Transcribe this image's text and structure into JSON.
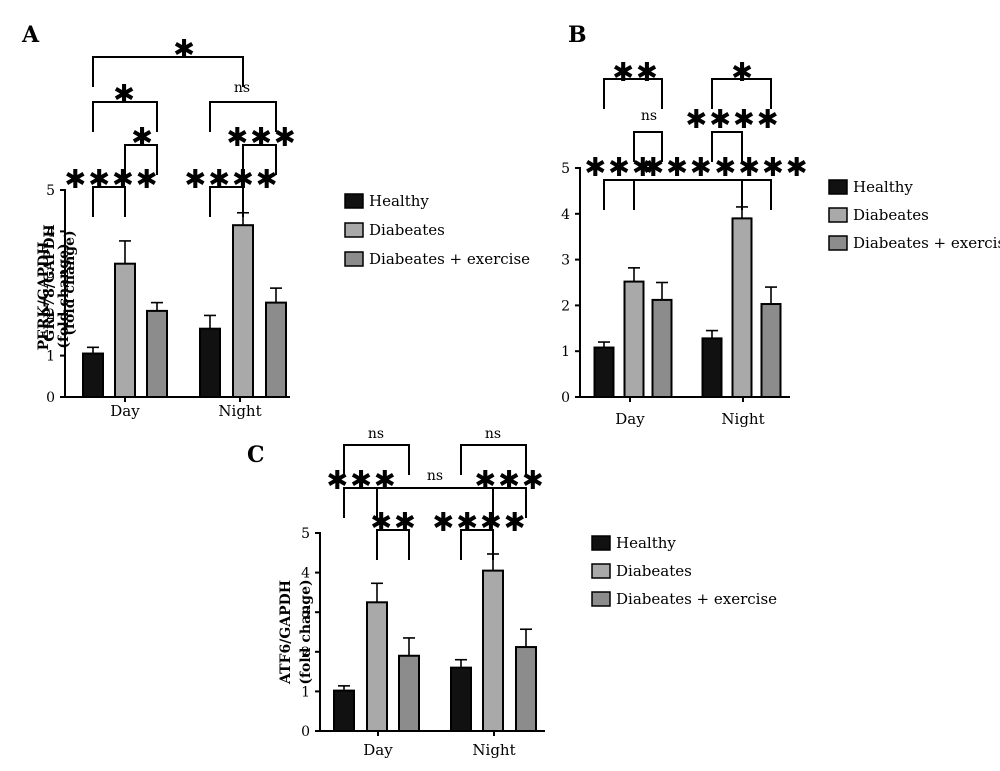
{
  "colors": {
    "Healthy": "#111111",
    "Diabeates": "#a9a9a9",
    "Diabeates + exercise": "#8c8c8c"
  },
  "legend_labels": [
    "Healthy",
    "Diabeates",
    "Diabeates + exercise"
  ],
  "chart_data": [
    {
      "type": "bar",
      "panel_label": "A",
      "ylabel_line1": "PERK/GAPDH",
      "ylabel_line2": "(fold change)",
      "categories": [
        "Day",
        "Night"
      ],
      "ylim": [
        0,
        5
      ],
      "yticks": [
        0,
        1,
        2,
        3,
        4,
        5
      ],
      "series": [
        {
          "name": "Healthy",
          "values": [
            1.05,
            1.65
          ],
          "errors": [
            0.15,
            0.32
          ]
        },
        {
          "name": "Diabeates",
          "values": [
            3.22,
            4.15
          ],
          "errors": [
            0.55,
            0.3
          ]
        },
        {
          "name": "Diabeates + exercise",
          "values": [
            2.08,
            2.28
          ],
          "errors": [
            0.2,
            0.35
          ]
        }
      ],
      "significance": [
        {
          "label": "*",
          "from": "Day:Healthy",
          "to": "Night:Healthy"
        },
        {
          "label": "*",
          "from": "Day:Healthy",
          "to": "Day:Diabeates + exercise"
        },
        {
          "label": "ns",
          "from": "Night:Healthy",
          "to": "Night:Diabeates + exercise"
        },
        {
          "label": "*",
          "from": "Day:Diabeates",
          "to": "Day:Diabeates + exercise"
        },
        {
          "label": "***",
          "from": "Night:Diabeates",
          "to": "Night:Diabeates + exercise"
        },
        {
          "label": "****",
          "from": "Day:Healthy",
          "to": "Day:Diabeates"
        },
        {
          "label": "****",
          "from": "Night:Healthy",
          "to": "Night:Diabeates"
        }
      ]
    },
    {
      "type": "bar",
      "panel_label": "B",
      "ylabel_line1": "GRP78/GAPDH",
      "ylabel_line2": "(fold change)",
      "categories": [
        "Day",
        "Night"
      ],
      "ylim": [
        0,
        5
      ],
      "yticks": [
        0,
        1,
        2,
        3,
        4,
        5
      ],
      "series": [
        {
          "name": "Healthy",
          "values": [
            1.08,
            1.28
          ],
          "errors": [
            0.12,
            0.17
          ]
        },
        {
          "name": "Diabeates",
          "values": [
            2.52,
            3.9
          ],
          "errors": [
            0.3,
            0.25
          ]
        },
        {
          "name": "Diabeates + exercise",
          "values": [
            2.12,
            2.03
          ],
          "errors": [
            0.38,
            0.37
          ]
        }
      ],
      "significance": [
        {
          "label": "**",
          "from": "Day:Healthy",
          "to": "Day:Diabeates + exercise"
        },
        {
          "label": "*",
          "from": "Night:Healthy",
          "to": "Night:Diabeates + exercise"
        },
        {
          "label": "ns",
          "from": "Day:Diabeates",
          "to": "Day:Diabeates + exercise"
        },
        {
          "label": "****",
          "from": "Night:Healthy",
          "to": "Night:Diabeates"
        },
        {
          "label": "***",
          "from": "Day:Healthy",
          "to": "Day:Diabeates"
        },
        {
          "label": "***",
          "from": "Day:Diabeates",
          "to": "Night:Diabeates"
        },
        {
          "label": "****",
          "from": "Night:Diabeates",
          "to": "Night:Diabeates + exercise"
        }
      ]
    },
    {
      "type": "bar",
      "panel_label": "C",
      "ylabel_line1": "ATF6/GAPDH",
      "ylabel_line2": "(fold change)",
      "categories": [
        "Day",
        "Night"
      ],
      "ylim": [
        0,
        5
      ],
      "yticks": [
        0,
        1,
        2,
        3,
        4,
        5
      ],
      "series": [
        {
          "name": "Healthy",
          "values": [
            1.02,
            1.6
          ],
          "errors": [
            0.12,
            0.2
          ]
        },
        {
          "name": "Diabeates",
          "values": [
            3.25,
            4.05
          ],
          "errors": [
            0.48,
            0.42
          ]
        },
        {
          "name": "Diabeates + exercise",
          "values": [
            1.9,
            2.12
          ],
          "errors": [
            0.45,
            0.45
          ]
        }
      ],
      "significance": [
        {
          "label": "ns",
          "from": "Day:Healthy",
          "to": "Day:Diabeates + exercise"
        },
        {
          "label": "ns",
          "from": "Night:Healthy",
          "to": "Night:Diabeates + exercise"
        },
        {
          "label": "***",
          "from": "Day:Healthy",
          "to": "Day:Diabeates"
        },
        {
          "label": "ns",
          "from": "Day:Diabeates",
          "to": "Night:Diabeates"
        },
        {
          "label": "***",
          "from": "Night:Diabeates",
          "to": "Night:Diabeates + exercise"
        },
        {
          "label": "**",
          "from": "Day:Diabeates",
          "to": "Day:Diabeates + exercise"
        },
        {
          "label": "****",
          "from": "Night:Healthy",
          "to": "Night:Diabeates"
        }
      ]
    }
  ]
}
